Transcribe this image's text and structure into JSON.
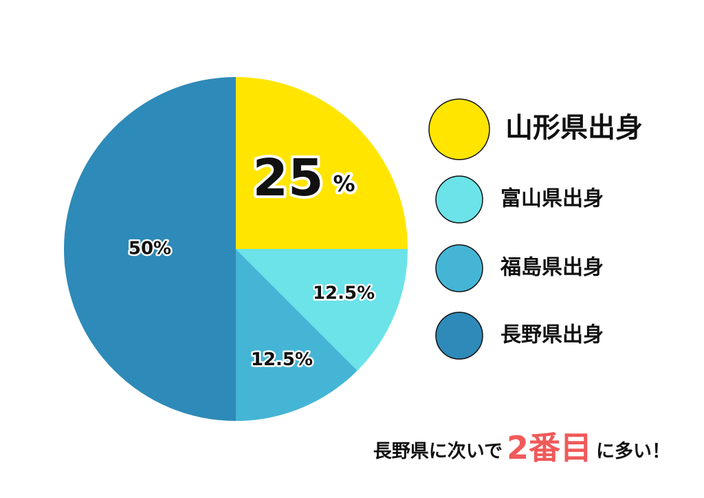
{
  "chart_data": {
    "type": "pie",
    "categories": [
      "山形県出身",
      "富山県出身",
      "福島県出身",
      "長野県出身"
    ],
    "values": [
      25,
      12.5,
      12.5,
      50
    ],
    "value_labels": [
      "25%",
      "12.5%",
      "12.5%",
      "50%"
    ],
    "colors": [
      "#ffe500",
      "#6be3e8",
      "#45b5d6",
      "#2e8ab8"
    ],
    "annotation": [
      "長野県に次いで",
      "2番目",
      "に多い！"
    ]
  }
}
